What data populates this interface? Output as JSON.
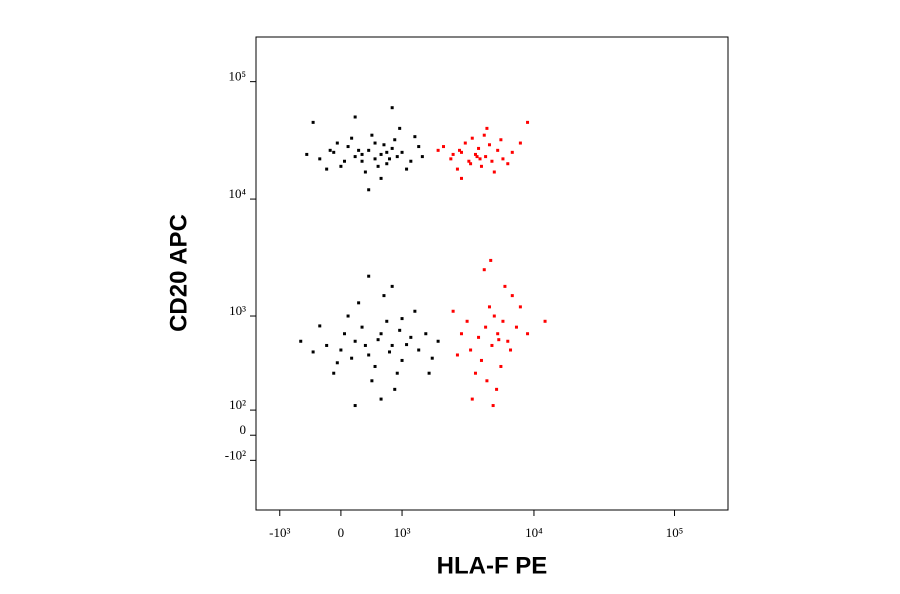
{
  "chart_data": {
    "type": "scatter",
    "x_label": "HLA-F PE",
    "y_label": "CD20 APC",
    "xscale": "biexponential",
    "yscale": "biexponential",
    "xlim": [
      -1600,
      240000
    ],
    "ylim": [
      -400,
      240000
    ],
    "xticks": [
      {
        "value": -1000,
        "label": "-10³"
      },
      0,
      {
        "value": 1000,
        "label": "10³"
      },
      {
        "value": 10000,
        "label": "10⁴"
      },
      {
        "value": 100000,
        "label": "10⁵"
      }
    ],
    "yticks": [
      {
        "value": -100,
        "label": "-10²"
      },
      0,
      {
        "value": 100,
        "label": "10²"
      },
      {
        "value": 1000,
        "label": "10³"
      },
      {
        "value": 10000,
        "label": "10⁴"
      },
      {
        "value": 100000,
        "label": "10⁵"
      }
    ],
    "series": [
      {
        "color": "#000000",
        "x": [
          -300,
          -100,
          0,
          100,
          200,
          300,
          400,
          500,
          600,
          700,
          800,
          900,
          1000,
          1200,
          1400,
          -500,
          -200,
          150,
          350,
          450,
          550,
          650,
          750,
          850,
          250,
          50,
          -50,
          1100,
          1300,
          950,
          -400,
          600,
          200,
          400,
          800,
          1500,
          -150,
          300,
          500,
          700,
          0,
          200,
          400,
          600,
          800,
          1000,
          1200,
          -200,
          -400,
          300,
          500,
          700,
          900,
          100,
          -100,
          1400,
          1600,
          1800,
          250,
          650,
          450,
          850,
          -600,
          50,
          350,
          550,
          750,
          950,
          1100,
          150,
          -300,
          2000,
          400,
          600,
          200,
          1300,
          -50,
          800,
          1700,
          1000
        ],
        "y": [
          22000,
          25000,
          19000,
          28000,
          23000,
          21000,
          26000,
          30000,
          24000,
          20000,
          27000,
          23000,
          25000,
          21000,
          28000,
          24000,
          18000,
          33000,
          17000,
          35000,
          19000,
          29000,
          22000,
          32000,
          26000,
          21000,
          30000,
          18000,
          34000,
          40000,
          45000,
          15000,
          50000,
          12000,
          60000,
          23000,
          26000,
          24000,
          22000,
          25000,
          500,
          600,
          450,
          700,
          550,
          400,
          650,
          550,
          480,
          800,
          350,
          900,
          300,
          1000,
          300,
          500,
          700,
          420,
          1300,
          1500,
          250,
          200,
          600,
          700,
          550,
          620,
          480,
          750,
          560,
          420,
          820,
          600,
          2200,
          150,
          120,
          1100,
          380,
          1800,
          300,
          950
        ]
      },
      {
        "color": "#ff0000",
        "x": [
          2500,
          3000,
          3500,
          4000,
          4500,
          5000,
          3200,
          2800,
          3800,
          4200,
          5500,
          6000,
          2200,
          3600,
          4800,
          2600,
          3400,
          4400,
          5200,
          7000,
          8000,
          3000,
          2000,
          4600,
          6500,
          3900,
          2900,
          4100,
          9000,
          5800,
          3500,
          4000,
          4500,
          5000,
          5500,
          6000,
          4200,
          3800,
          5200,
          4800,
          6500,
          3000,
          2800,
          7000,
          5800,
          4600,
          3300,
          6200,
          5400,
          7500,
          8000,
          4400,
          3600,
          5100,
          6800,
          2600,
          4900,
          9000,
          12000,
          5600
        ],
        "y": [
          22000,
          25000,
          20000,
          27000,
          23000,
          21000,
          30000,
          18000,
          24000,
          19000,
          26000,
          22000,
          28000,
          33000,
          29000,
          24000,
          21000,
          35000,
          17000,
          25000,
          30000,
          15000,
          26000,
          40000,
          20000,
          23000,
          26000,
          22000,
          45000,
          32000,
          500,
          650,
          800,
          550,
          700,
          900,
          400,
          300,
          1000,
          1200,
          600,
          700,
          450,
          1500,
          350,
          250,
          900,
          1800,
          200,
          800,
          1200,
          2500,
          150,
          120,
          500,
          1100,
          3000,
          700,
          900,
          620
        ]
      }
    ]
  }
}
